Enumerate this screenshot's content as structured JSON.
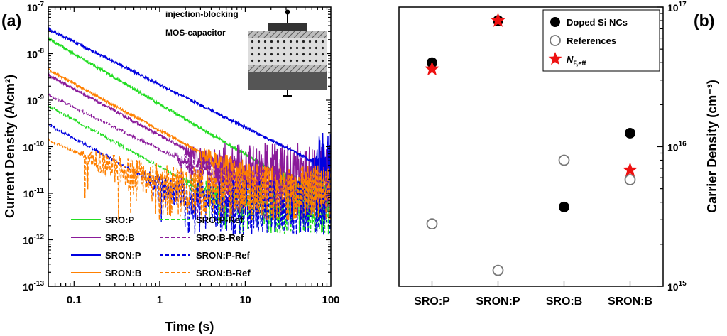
{
  "chart_data": [
    {
      "panel": "(a)",
      "type": "line",
      "xscale": "log",
      "yscale": "log",
      "xlabel": "Time (s)",
      "ylabel": "Current Density (A/cm²)",
      "xlim": [
        0.05,
        100
      ],
      "ylim": [
        1e-13,
        1e-07
      ],
      "x_ticks": [
        {
          "value": 0.1,
          "label": "0.1"
        },
        {
          "value": 1,
          "label": "1"
        },
        {
          "value": 10,
          "label": "10"
        },
        {
          "value": 100,
          "label": "100"
        }
      ],
      "y_ticks": [
        {
          "value": 1e-13,
          "base": "10",
          "exp": "-13"
        },
        {
          "value": 1e-12,
          "base": "10",
          "exp": "-12"
        },
        {
          "value": 1e-11,
          "base": "10",
          "exp": "-11"
        },
        {
          "value": 1e-10,
          "base": "10",
          "exp": "-10"
        },
        {
          "value": 1e-09,
          "base": "10",
          "exp": "-9"
        },
        {
          "value": 1e-08,
          "base": "10",
          "exp": "-8"
        },
        {
          "value": 1e-07,
          "base": "10",
          "exp": "-7"
        }
      ],
      "inset": {
        "label_line1": "injection-blocking",
        "label_line2": "MOS-capacitor"
      },
      "series": [
        {
          "name": "SRO:P",
          "color": "#22dd22",
          "dash": "solid",
          "start": [
            0.05,
            2.1e-08
          ],
          "decay": -1.08,
          "noise_floor": 1e-11,
          "noise_from": 25,
          "t0": 0.3
        },
        {
          "name": "SRO:B",
          "color": "#8a1a9a",
          "dash": "solid",
          "start": [
            0.05,
            3.5e-09
          ],
          "decay": -1.0,
          "noise_floor": 3e-11,
          "noise_from": 2,
          "t0": 0.3
        },
        {
          "name": "SRON:P",
          "color": "#0000e0",
          "dash": "solid",
          "start": [
            0.05,
            3.4e-08
          ],
          "decay": -0.92,
          "noise_floor": 5e-11,
          "noise_from": 60,
          "t0": 0.15
        },
        {
          "name": "SRON:B",
          "color": "#ff8000",
          "dash": "solid",
          "start": [
            0.05,
            4.5e-09
          ],
          "decay": -1.0,
          "noise_floor": 1e-11,
          "noise_from": 3,
          "t0": 0.3
        },
        {
          "name": "SRO:P-Ref",
          "color": "#22dd22",
          "dash": "dashed",
          "start": [
            0.05,
            7.5e-10
          ],
          "decay": -1.0,
          "noise_floor": 5e-12,
          "noise_from": 2,
          "t0": 0.3
        },
        {
          "name": "SRO:B-Ref",
          "color": "#8a1a9a",
          "dash": "dashed",
          "start": [
            0.05,
            1.3e-09
          ],
          "decay": -0.9,
          "noise_floor": 1e-11,
          "noise_from": 1.5,
          "t0": 0.3
        },
        {
          "name": "SRON:P-Ref",
          "color": "#0000e0",
          "dash": "dashed",
          "start": [
            0.05,
            3e-10
          ],
          "decay": -1.0,
          "noise_floor": 5e-12,
          "noise_from": 0.6,
          "t0": 0.3
        },
        {
          "name": "SRON:B-Ref",
          "color": "#ff8000",
          "dash": "dashed",
          "start": [
            0.05,
            1.4e-10
          ],
          "decay": -0.8,
          "noise_floor": 1e-11,
          "noise_from": 0.12,
          "t0": 0.5
        }
      ]
    },
    {
      "panel": "(b)",
      "type": "scatter",
      "yscale": "log",
      "ylabel": "Carrier Density (cm⁻³)",
      "ylim": [
        1000000000000000.0,
        1e+17
      ],
      "categories": [
        "SRO:P",
        "SRON:P",
        "SRO:B",
        "SRON:B"
      ],
      "y_ticks": [
        {
          "value": 1000000000000000.0,
          "base": "10",
          "exp": "15"
        },
        {
          "value": 1e+16,
          "base": "10",
          "exp": "16"
        },
        {
          "value": 1e+17,
          "base": "10",
          "exp": "17"
        }
      ],
      "series": [
        {
          "name": "Doped Si NCs",
          "marker": "filled-circle",
          "color": "#000000",
          "values": [
            4e+16,
            8e+16,
            3700000000000000.0,
            1.25e+16
          ]
        },
        {
          "name": "References",
          "marker": "open-circle",
          "color": "#777777",
          "values": [
            2800000000000000.0,
            1300000000000000.0,
            8000000000000000.0,
            5800000000000000.0
          ]
        },
        {
          "name": "N_F,eff",
          "legend_main": "N",
          "legend_sub": "F,eff",
          "marker": "star",
          "color": "#ee1111",
          "values": [
            3.6e+16,
            8e+16,
            null,
            6800000000000000.0
          ]
        }
      ]
    }
  ]
}
